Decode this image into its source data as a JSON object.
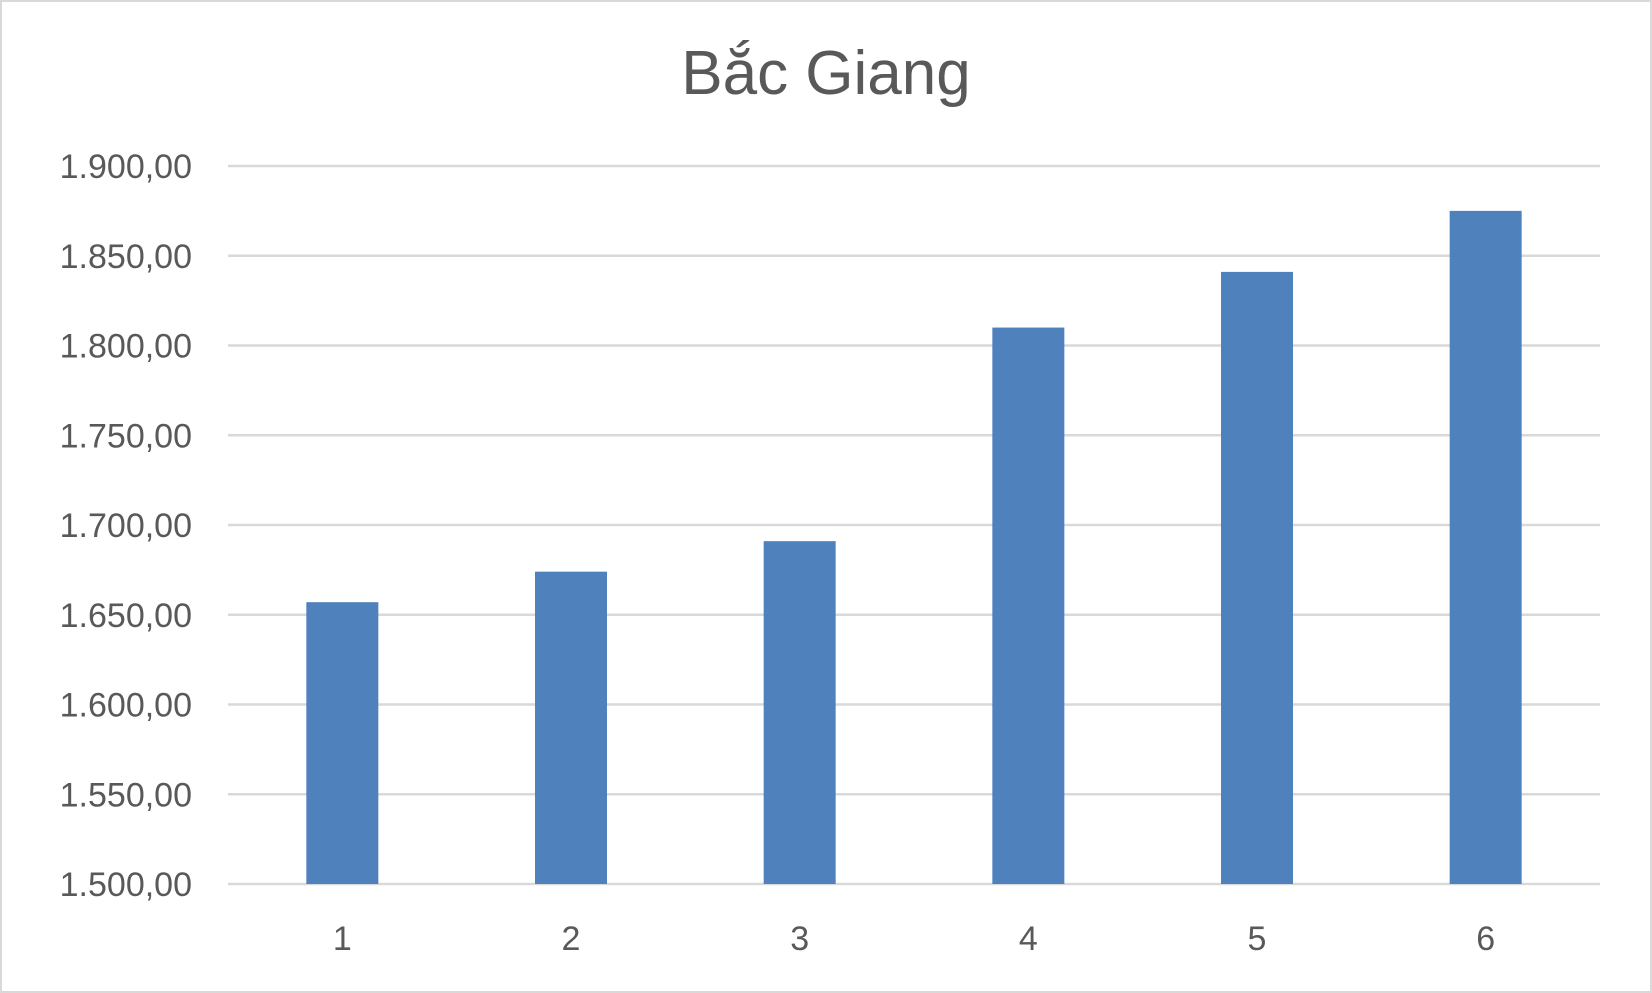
{
  "chart_data": {
    "type": "bar",
    "title": "Bắc Giang",
    "xlabel": "",
    "ylabel": "",
    "categories": [
      "1",
      "2",
      "3",
      "4",
      "5",
      "6"
    ],
    "values": [
      1657,
      1674,
      1691,
      1810,
      1841,
      1875
    ],
    "ylim": [
      1500,
      1900
    ],
    "y_ticks": [
      1500,
      1550,
      1600,
      1650,
      1700,
      1750,
      1800,
      1850,
      1900
    ],
    "y_tick_labels": [
      "1.500,00",
      "1.550,00",
      "1.600,00",
      "1.650,00",
      "1.700,00",
      "1.750,00",
      "1.800,00",
      "1.850,00",
      "1.900,00"
    ],
    "grid": true,
    "legend": "none",
    "colors": {
      "bar": "#4f81bd",
      "grid": "#d9d9d9",
      "text": "#595959"
    }
  }
}
